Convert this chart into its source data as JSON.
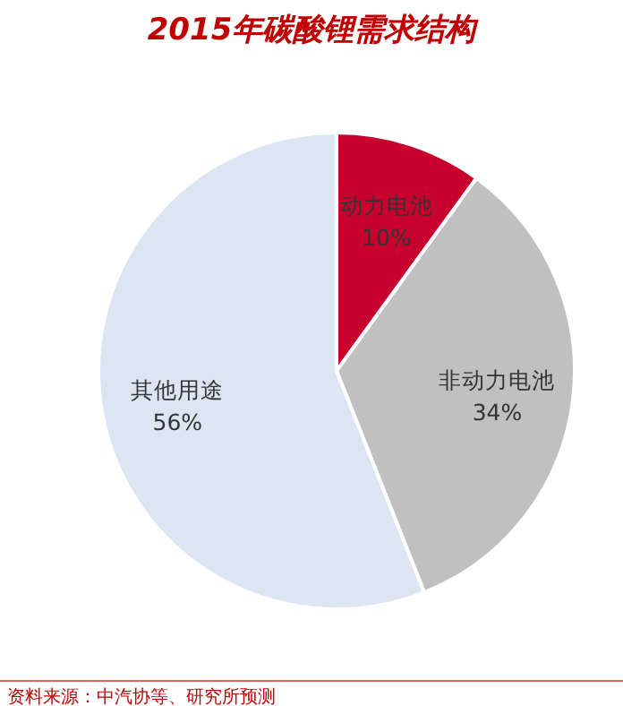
{
  "chart_data": {
    "type": "pie",
    "title": "2015年碳酸锂需求结构",
    "categories": [
      "动力电池",
      "非动力电池",
      "其他用途"
    ],
    "values": [
      10,
      34,
      56
    ],
    "value_labels": [
      "10%",
      "34%",
      "56%"
    ],
    "colors": [
      "#c8002d",
      "#c0c0c0",
      "#dce6f2"
    ],
    "annotations": [
      "资料来源：中汽协等、研究所预测"
    ]
  }
}
